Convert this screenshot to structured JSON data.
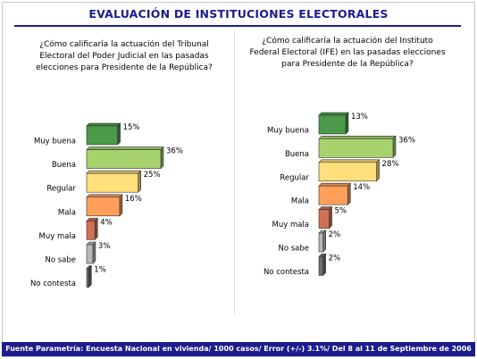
{
  "title": "EVALUACIÓN DE INSTITUCIONES ELECTORALES",
  "footer": "Fuente Parametría: Encuesta Nacional en vivienda/ 1000 casos/ Error (+/-) 3.1%/ Del 8 al 11 de Septiembre de 2006",
  "colors": {
    "title": "#1c1c8c",
    "footer_bg": "#1c1c8c",
    "muy_buena": "#4a9a4a",
    "buena": "#a6d36e",
    "regular": "#ffe07a",
    "mala": "#ff9f5a",
    "muy_mala": "#cf7055",
    "no_sabe": "#b8b8b8",
    "no_contesta": "#6e6e6e"
  },
  "chart_data": [
    {
      "type": "bar",
      "orientation": "horizontal",
      "title": "¿Cómo calificaría la actuación del Tribunal Electoral del Poder Judicial en las pasadas elecciones para Presidente de la República?",
      "categories": [
        "Muy buena",
        "Buena",
        "Regular",
        "Mala",
        "Muy mala",
        "No sabe",
        "No contesta"
      ],
      "values": [
        15,
        36,
        25,
        16,
        4,
        3,
        1
      ],
      "value_labels": [
        "15%",
        "36%",
        "25%",
        "16%",
        "4%",
        "3%",
        "1%"
      ],
      "unit": "%"
    },
    {
      "type": "bar",
      "orientation": "horizontal",
      "title": "¿Cómo calificaría la actuación del Instituto Federal Electoral (IFE) en las pasadas elecciones para Presidente de la República?",
      "categories": [
        "Muy buena",
        "Buena",
        "Regular",
        "Mala",
        "Muy mala",
        "No sabe",
        "No contesta"
      ],
      "values": [
        13,
        36,
        28,
        14,
        5,
        2,
        2
      ],
      "value_labels": [
        "13%",
        "36%",
        "28%",
        "14%",
        "5%",
        "2%",
        "2%"
      ],
      "unit": "%"
    }
  ]
}
